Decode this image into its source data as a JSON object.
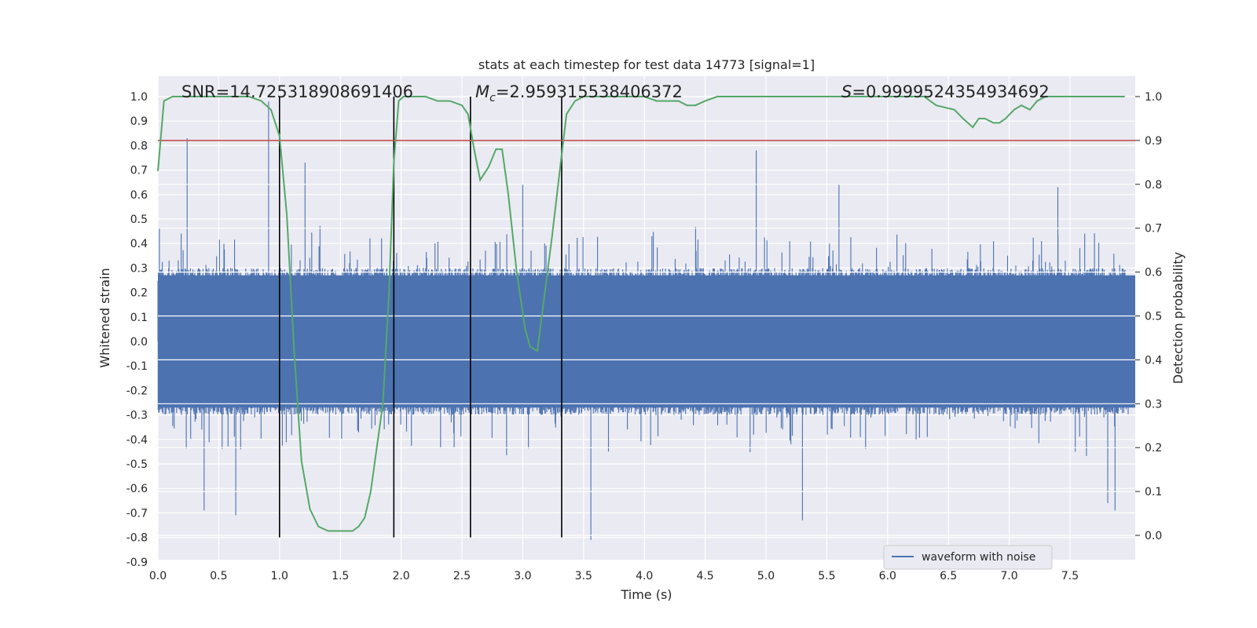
{
  "chart_data": {
    "type": "line",
    "title": "stats at each timestep for test data 14773 [signal=1]",
    "xlabel": "Time (s)",
    "ylabel": "Whitened strain",
    "y2label": "Detection probability",
    "xlim": [
      0.0,
      8.0
    ],
    "ylim": [
      -0.9,
      1.09
    ],
    "y2lim": [
      -0.05,
      1.05
    ],
    "x_ticks": [
      "0.0",
      "0.5",
      "1.0",
      "1.5",
      "2.0",
      "2.5",
      "3.0",
      "3.5",
      "4.0",
      "4.5",
      "5.0",
      "5.5",
      "6.0",
      "6.5",
      "7.0",
      "7.5"
    ],
    "y_ticks": [
      "1.0",
      "0.9",
      "0.8",
      "0.7",
      "0.6",
      "0.5",
      "0.4",
      "0.3",
      "0.2",
      "0.1",
      "0.0",
      "-0.1",
      "-0.2",
      "-0.3",
      "-0.4",
      "-0.5",
      "-0.6",
      "-0.7",
      "-0.8",
      "-0.9"
    ],
    "y2_ticks": [
      "1.0",
      "0.9",
      "0.8",
      "0.7",
      "0.6",
      "0.5",
      "0.4",
      "0.3",
      "0.2",
      "0.1",
      "0.0"
    ],
    "grid": true,
    "legend": {
      "placement": "lower-right",
      "entries": [
        "waveform with noise"
      ]
    },
    "annotations": [
      {
        "name": "snr",
        "text": "SNR=14.725318908691406"
      },
      {
        "name": "mc",
        "prefix": "M",
        "sub": "c",
        "text": "=2.959315538406372"
      },
      {
        "name": "s",
        "prefix": "S",
        "text": "=0.9999524354934692"
      }
    ],
    "threshold_y2": 0.9,
    "vertical_lines_x": [
      1.0,
      1.94,
      2.57,
      3.32
    ],
    "series": [
      {
        "name": "waveform with noise",
        "kind": "noise",
        "color": "#4c72b0",
        "spikes_up": [
          [
            0.24,
            0.83
          ],
          [
            0.91,
            0.98
          ],
          [
            1.21,
            0.73
          ],
          [
            4.92,
            0.78
          ],
          [
            3.0,
            0.64
          ],
          [
            5.6,
            0.64
          ],
          [
            7.4,
            0.63
          ]
        ],
        "spikes_down": [
          [
            0.38,
            -0.69
          ],
          [
            0.64,
            -0.71
          ],
          [
            3.56,
            -0.81
          ],
          [
            5.3,
            -0.73
          ],
          [
            7.87,
            -0.69
          ],
          [
            7.81,
            -0.66
          ]
        ]
      },
      {
        "kind": "probability",
        "color": "#55a868",
        "x": [
          0.0,
          0.05,
          0.12,
          0.25,
          0.5,
          0.75,
          0.85,
          0.93,
          1.0,
          1.06,
          1.12,
          1.18,
          1.25,
          1.32,
          1.4,
          1.5,
          1.6,
          1.65,
          1.7,
          1.75,
          1.8,
          1.85,
          1.9,
          1.94,
          1.98,
          2.02,
          2.1,
          2.2,
          2.3,
          2.4,
          2.5,
          2.55,
          2.6,
          2.65,
          2.72,
          2.78,
          2.83,
          2.88,
          2.95,
          3.02,
          3.06,
          3.12,
          3.18,
          3.24,
          3.3,
          3.36,
          3.43,
          3.5,
          3.6,
          3.7,
          3.8,
          3.9,
          4.0,
          4.1,
          4.2,
          4.28,
          4.35,
          4.42,
          4.5,
          4.6,
          4.75,
          4.9,
          5.0,
          5.2,
          5.4,
          5.6,
          5.8,
          6.0,
          6.2,
          6.3,
          6.4,
          6.55,
          6.62,
          6.7,
          6.75,
          6.8,
          6.87,
          6.92,
          6.97,
          7.04,
          7.1,
          7.17,
          7.23,
          7.3,
          7.4,
          7.5,
          7.6,
          7.7,
          7.8,
          7.95
        ],
        "y": [
          0.83,
          0.99,
          1.0,
          1.0,
          1.0,
          1.0,
          0.99,
          0.97,
          0.91,
          0.73,
          0.42,
          0.17,
          0.06,
          0.02,
          0.01,
          0.01,
          0.01,
          0.02,
          0.04,
          0.1,
          0.2,
          0.3,
          0.55,
          0.85,
          0.99,
          1.0,
          1.0,
          1.0,
          0.99,
          0.99,
          0.98,
          0.96,
          0.88,
          0.81,
          0.84,
          0.88,
          0.88,
          0.78,
          0.6,
          0.47,
          0.43,
          0.42,
          0.55,
          0.68,
          0.82,
          0.96,
          0.99,
          1.0,
          1.0,
          1.0,
          1.0,
          1.0,
          1.0,
          0.99,
          0.99,
          0.99,
          0.98,
          0.98,
          0.99,
          1.0,
          1.0,
          1.0,
          1.0,
          1.0,
          1.0,
          1.0,
          1.0,
          1.0,
          1.0,
          1.0,
          0.98,
          0.97,
          0.95,
          0.93,
          0.95,
          0.95,
          0.94,
          0.94,
          0.95,
          0.97,
          0.98,
          0.97,
          0.99,
          1.0,
          1.0,
          1.0,
          1.0,
          1.0,
          1.0,
          1.0
        ]
      }
    ]
  }
}
